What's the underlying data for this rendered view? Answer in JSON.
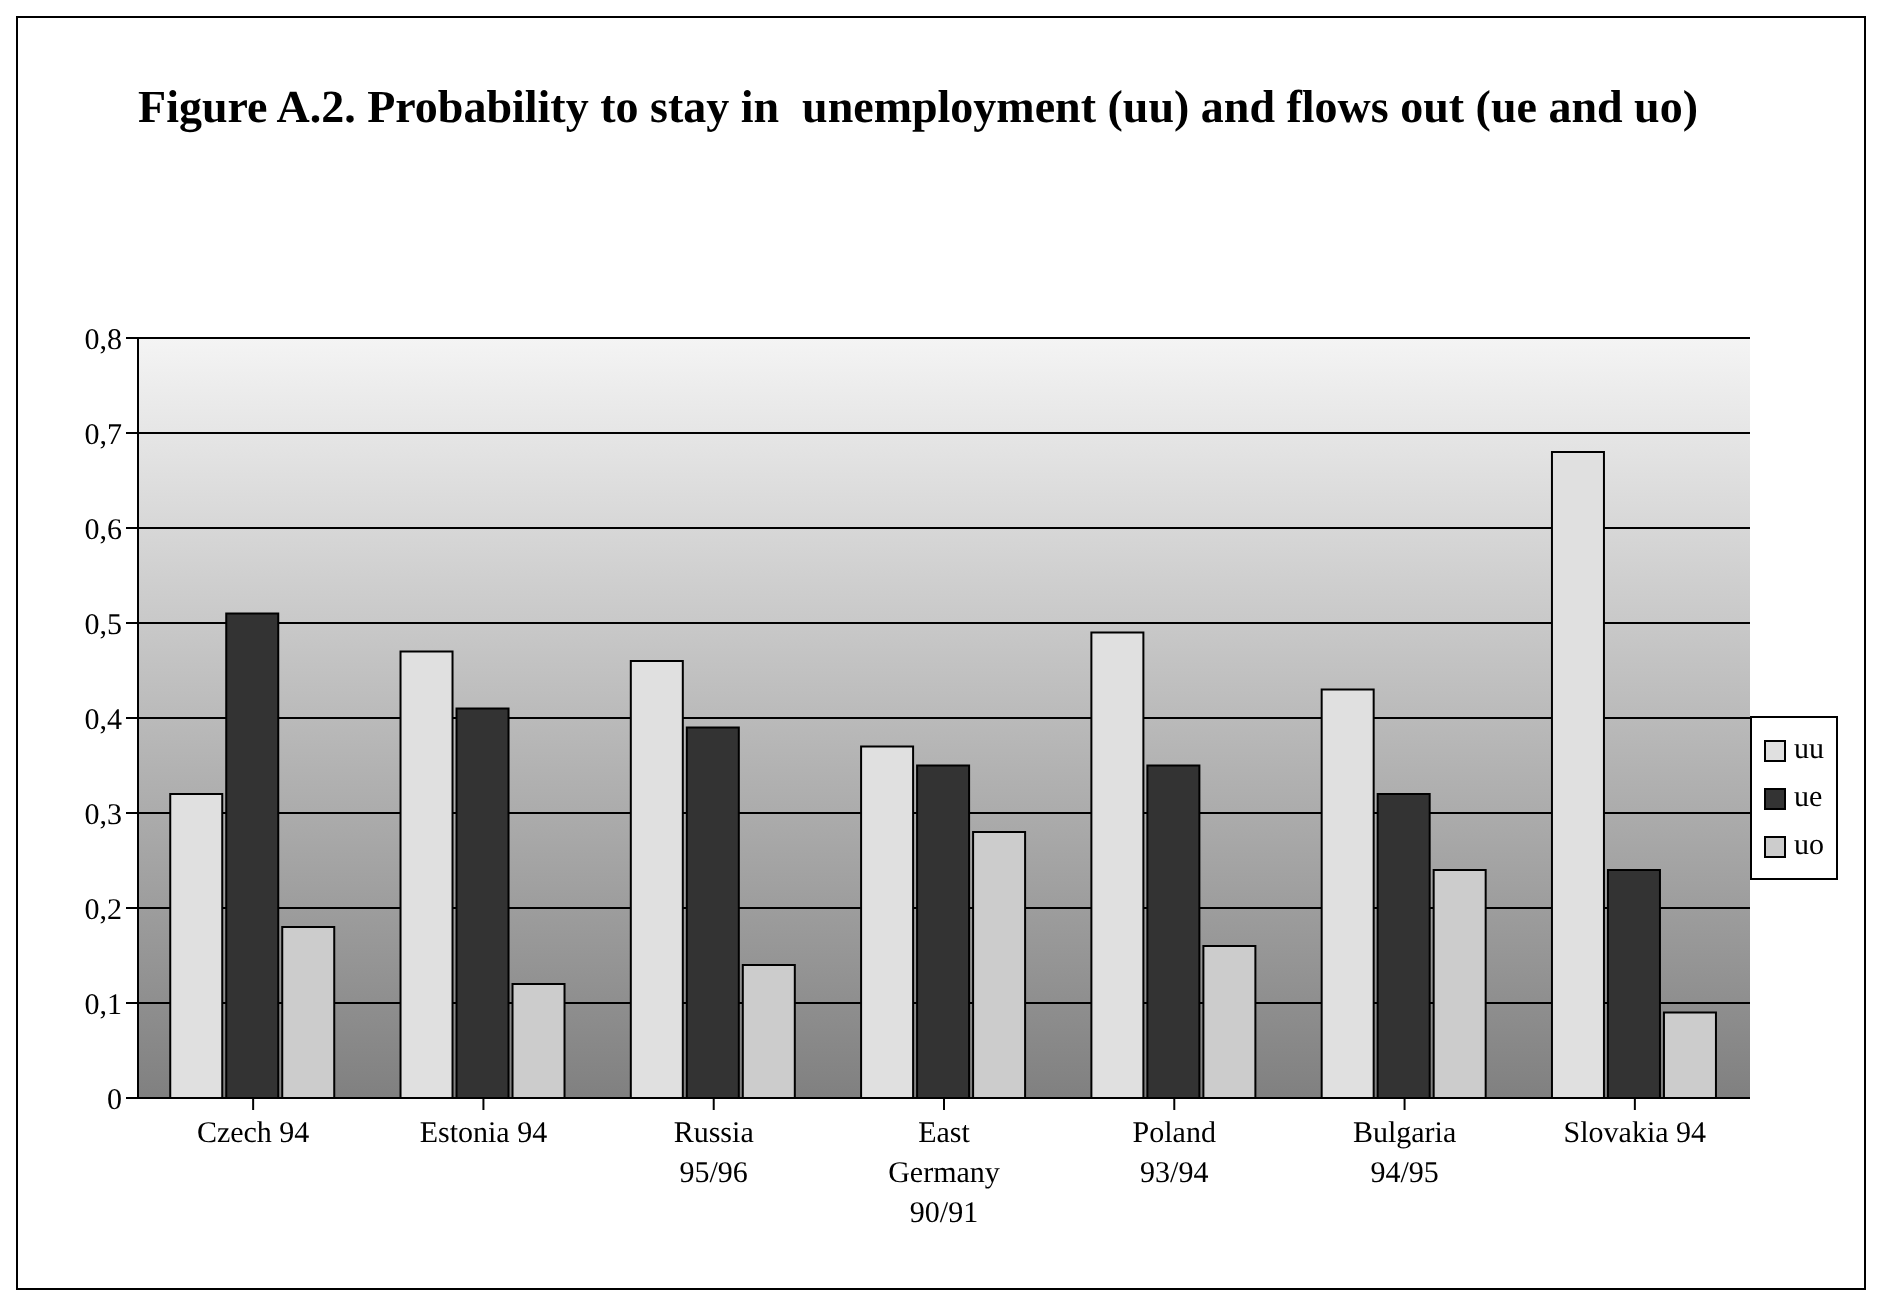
{
  "chart_data": {
    "type": "bar",
    "title": "Figure A.2. Probability to stay in  unemployment (uu) and flows out (ue and uo)",
    "categories": [
      "Czech 94",
      "Estonia 94",
      "Russia 95/96",
      "East Germany 90/91",
      "Poland 93/94",
      "Bulgaria 94/95",
      "Slovakia 94"
    ],
    "series": [
      {
        "name": "uu",
        "color": "#e0e0e0",
        "values": [
          0.32,
          0.47,
          0.46,
          0.37,
          0.49,
          0.43,
          0.68
        ]
      },
      {
        "name": "ue",
        "color": "#333333",
        "values": [
          0.51,
          0.41,
          0.39,
          0.35,
          0.35,
          0.32,
          0.24
        ]
      },
      {
        "name": "uo",
        "color": "#cccccc",
        "values": [
          0.18,
          0.12,
          0.14,
          0.28,
          0.16,
          0.24,
          0.09
        ]
      }
    ],
    "ylim": [
      0,
      0.8
    ],
    "yticks": [
      0,
      {
        "value": 0.1,
        "label": "0,1"
      },
      {
        "value": 0.2,
        "label": "0,2"
      },
      {
        "value": 0.3,
        "label": "0,3"
      },
      {
        "value": 0.4,
        "label": "0,4"
      },
      {
        "value": 0.5,
        "label": "0,5"
      },
      {
        "value": 0.6,
        "label": "0,6"
      },
      {
        "value": 0.7,
        "label": "0,7"
      },
      {
        "value": 0.8,
        "label": "0,8"
      }
    ],
    "grid": "y",
    "legend": "right"
  }
}
